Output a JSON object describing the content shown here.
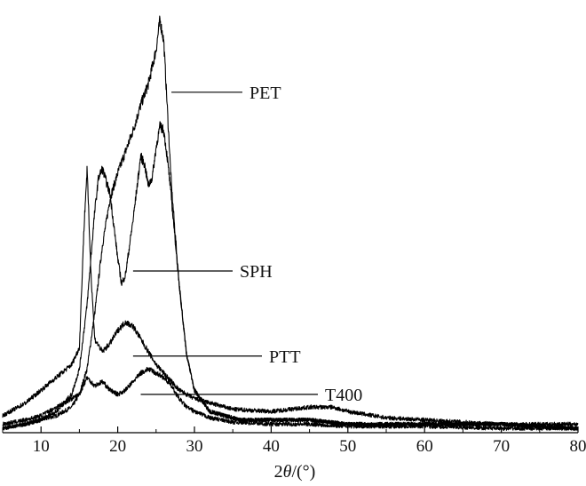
{
  "chart_data": {
    "type": "line",
    "xlabel_prefix": "2",
    "xlabel_var": "θ",
    "xlabel_suffix": "/(°)",
    "xlim": [
      5,
      80
    ],
    "ylim": [
      0,
      100
    ],
    "xticks": [
      10,
      20,
      30,
      40,
      50,
      60,
      70,
      80
    ],
    "y_axis_visible": false,
    "grid": false,
    "series": [
      {
        "name": "PET",
        "color": "#000000",
        "x": [
          5,
          8,
          10,
          12,
          14,
          15,
          16,
          17,
          18,
          19,
          20,
          21,
          22,
          23,
          24,
          25,
          25.5,
          26,
          26.5,
          27,
          28,
          29,
          30,
          32,
          34,
          36,
          40,
          45,
          50,
          60,
          70,
          80
        ],
        "y": [
          1,
          2,
          3,
          4,
          6,
          9,
          15,
          28,
          44,
          55,
          61,
          66,
          71,
          77,
          82,
          90,
          97,
          92,
          75,
          58,
          35,
          18,
          10,
          5,
          4,
          3,
          3,
          3,
          2,
          2,
          2,
          1
        ]
      },
      {
        "name": "SPH",
        "color": "#000000",
        "x": [
          5,
          8,
          10,
          12,
          14,
          15,
          16,
          17,
          17.5,
          18,
          18.5,
          19,
          20,
          20.5,
          21,
          22,
          23,
          23.5,
          24,
          24.5,
          25,
          25.5,
          26,
          26.5,
          27,
          28,
          29,
          30,
          32,
          34,
          36,
          40,
          45,
          50,
          60,
          70,
          80
        ],
        "y": [
          1,
          2,
          3,
          5,
          9,
          15,
          30,
          52,
          60,
          62,
          59,
          56,
          41,
          35,
          37,
          50,
          65,
          63,
          58,
          60,
          67,
          72,
          71,
          64,
          55,
          35,
          18,
          10,
          5,
          4,
          3,
          3,
          3,
          2,
          2,
          2,
          1
        ]
      },
      {
        "name": "PTT",
        "color": "#000000",
        "x": [
          5,
          8,
          10,
          12,
          14,
          15,
          15.6,
          16,
          16.5,
          17,
          18,
          19,
          20,
          21,
          22,
          23,
          24,
          25,
          26,
          27,
          28,
          30,
          32,
          35,
          40,
          45,
          48,
          50,
          55,
          60,
          70,
          80
        ],
        "y": [
          4,
          7,
          10,
          13,
          16,
          20,
          48,
          62,
          38,
          22,
          19,
          21,
          24,
          26,
          25,
          22,
          19,
          16,
          14,
          12,
          10,
          8,
          7,
          5.5,
          5,
          6,
          6,
          5,
          3.5,
          3,
          2,
          2
        ]
      },
      {
        "name": "T400",
        "color": "#000000",
        "x": [
          5,
          8,
          10,
          12,
          14,
          15,
          16,
          17,
          18,
          19,
          20,
          21,
          22,
          23,
          24,
          25,
          26,
          27,
          28,
          29,
          30,
          32,
          35,
          40,
          45,
          50,
          60,
          70,
          80
        ],
        "y": [
          2,
          3,
          4,
          6,
          8,
          9,
          13,
          11,
          12,
          10,
          9,
          10,
          12,
          14,
          15,
          14,
          13,
          11,
          8,
          6,
          5,
          3.5,
          2.5,
          2,
          2,
          1.5,
          1.5,
          1,
          1
        ]
      }
    ],
    "annotations": [
      {
        "text": "PET",
        "x_point": 27,
        "y_point": 80,
        "x_text": 281
      },
      {
        "text": "SPH",
        "x_point": 22,
        "y_point": 38,
        "x_text": 270
      },
      {
        "text": "PTT",
        "x_point": 22,
        "y_point": 18,
        "x_text": 303
      },
      {
        "text": "T400",
        "x_point": 23,
        "y_point": 9,
        "x_text": 366
      }
    ]
  }
}
